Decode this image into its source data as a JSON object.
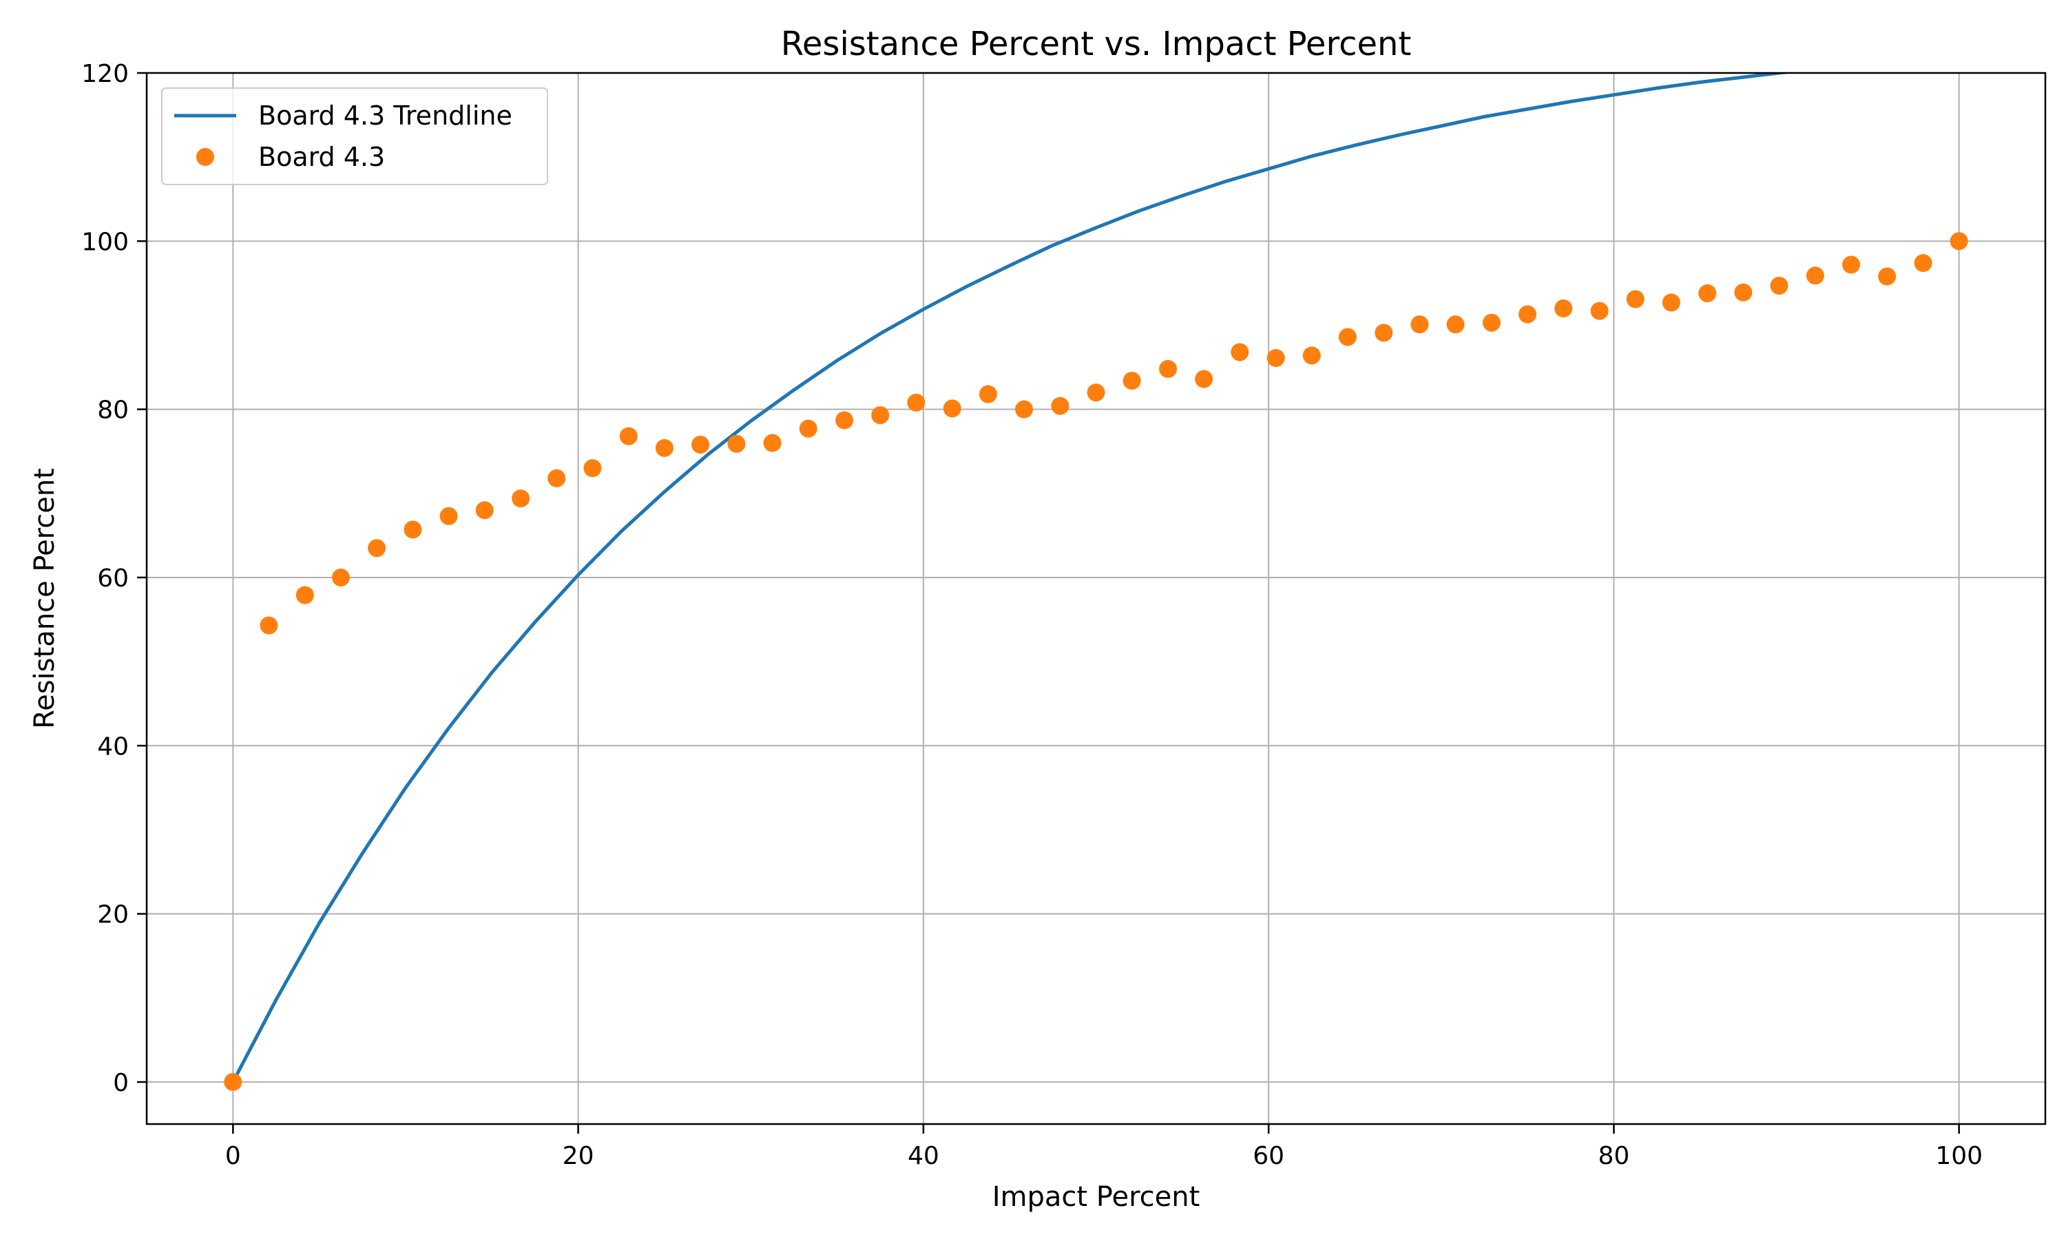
{
  "chart_data": {
    "type": "scatter",
    "title": "Resistance Percent vs. Impact Percent",
    "xlabel": "Impact Percent",
    "ylabel": "Resistance Percent",
    "xlim": [
      -5,
      105
    ],
    "ylim": [
      -5,
      120
    ],
    "xticks": [
      0,
      20,
      40,
      60,
      80,
      100
    ],
    "yticks": [
      0,
      20,
      40,
      60,
      80,
      100,
      120
    ],
    "grid": true,
    "legend_position": "top-left",
    "series": [
      {
        "name": "Board 4.3 Trendline",
        "type": "line",
        "color": "#1f77b4",
        "x": [
          0,
          2.5,
          5,
          7.5,
          10,
          12.5,
          15,
          17.5,
          20,
          22.5,
          25,
          27.5,
          30,
          32.5,
          35,
          37.5,
          40,
          42.5,
          45,
          47.5,
          50,
          52.5,
          55,
          57.5,
          60,
          62.5,
          65,
          67.5,
          70,
          72.5,
          75,
          77.5,
          80,
          82.5,
          85,
          87.5,
          90,
          92.5,
          95,
          97.5,
          100
        ],
        "y": [
          0,
          9.8,
          18.9,
          27.2,
          35.0,
          42.1,
          48.7,
          54.7,
          60.3,
          65.5,
          70.2,
          74.6,
          78.6,
          82.3,
          85.8,
          89.0,
          91.9,
          94.6,
          97.1,
          99.5,
          101.6,
          103.6,
          105.4,
          107.1,
          108.6,
          110.1,
          111.4,
          112.6,
          113.7,
          114.8,
          115.7,
          116.6,
          117.4,
          118.2,
          118.9,
          119.5,
          120.1,
          120.7,
          121.2,
          121.7,
          122.1
        ]
      },
      {
        "name": "Board 4.3",
        "type": "scatter",
        "color": "#ff7f0e",
        "x": [
          0,
          2.08,
          4.17,
          6.25,
          8.33,
          10.42,
          12.5,
          14.58,
          16.67,
          18.75,
          20.83,
          22.92,
          25.0,
          27.08,
          29.17,
          31.25,
          33.33,
          35.42,
          37.5,
          39.58,
          41.67,
          43.75,
          45.83,
          47.92,
          50.0,
          52.08,
          54.17,
          56.25,
          58.33,
          60.42,
          62.5,
          64.58,
          66.67,
          68.75,
          70.83,
          72.92,
          75.0,
          77.08,
          79.17,
          81.25,
          83.33,
          85.42,
          87.5,
          89.58,
          91.67,
          93.75,
          95.83,
          97.92,
          100
        ],
        "y": [
          0,
          54.3,
          57.9,
          60.0,
          63.5,
          65.7,
          67.3,
          68.0,
          69.4,
          71.8,
          73.0,
          76.8,
          75.4,
          75.8,
          75.9,
          76.0,
          77.7,
          78.7,
          79.3,
          80.8,
          80.1,
          81.8,
          80.0,
          80.4,
          82.0,
          83.4,
          84.8,
          83.6,
          86.8,
          86.1,
          86.4,
          88.6,
          89.1,
          90.1,
          90.1,
          90.3,
          91.3,
          92.0,
          91.7,
          93.1,
          92.7,
          93.8,
          93.9,
          94.7,
          95.9,
          97.2,
          95.8,
          97.4,
          100.0
        ]
      }
    ]
  }
}
